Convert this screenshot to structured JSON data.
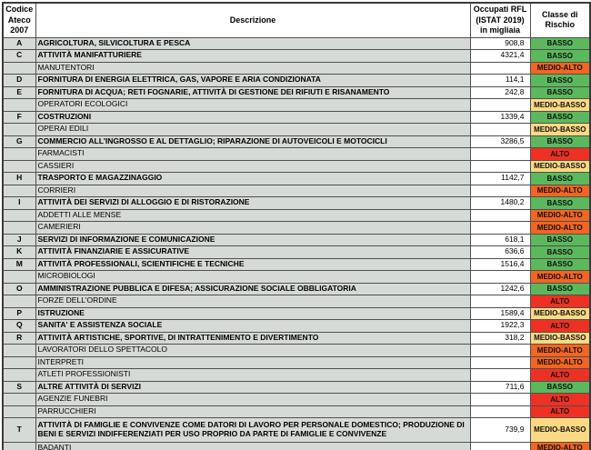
{
  "header": {
    "col_code": "Codice\nAteco\n2007",
    "col_desc": "Descrizione",
    "col_occ": "Occupati RFL\n(ISTAT 2019)\nin migliaia",
    "col_risk": "Classe di\nRischio"
  },
  "risk_colors": {
    "BASSO": "#5cb85c",
    "MEDIO-BASSO": "#fbd983",
    "MEDIO-ALTO": "#f26522",
    "ALTO": "#ee3124"
  },
  "rows": [
    {
      "code": "A",
      "desc": "AGRICOLTURA, SILVICOLTURA E PESCA",
      "occ": "908,8",
      "risk": "BASSO"
    },
    {
      "code": "C",
      "desc": "ATTIVITÀ MANIFATTURIERE",
      "occ": "4321,4",
      "risk": "BASSO"
    },
    {
      "code": "",
      "desc": "MANUTENTORI",
      "occ": "",
      "risk": "MEDIO-ALTO"
    },
    {
      "code": "D",
      "desc": "FORNITURA DI ENERGIA ELETTRICA, GAS, VAPORE E ARIA CONDIZIONATA",
      "occ": "114,1",
      "risk": "BASSO"
    },
    {
      "code": "E",
      "desc": "FORNITURA DI ACQUA; RETI FOGNARIE, ATTIVITÀ DI GESTIONE DEI RIFIUTI E RISANAMENTO",
      "occ": "242,8",
      "risk": "BASSO"
    },
    {
      "code": "",
      "desc": "OPERATORI ECOLOGICI",
      "occ": "",
      "risk": "MEDIO-BASSO"
    },
    {
      "code": "F",
      "desc": "COSTRUZIONI",
      "occ": "1339,4",
      "risk": "BASSO"
    },
    {
      "code": "",
      "desc": "OPERAI EDILI",
      "occ": "",
      "risk": "MEDIO-BASSO"
    },
    {
      "code": "G",
      "desc": "COMMERCIO ALL'INGROSSO E AL DETTAGLIO; RIPARAZIONE DI AUTOVEICOLI E MOTOCICLI",
      "occ": "3286,5",
      "risk": "BASSO"
    },
    {
      "code": "",
      "desc": "FARMACISTI",
      "occ": "",
      "risk": "ALTO"
    },
    {
      "code": "",
      "desc": "CASSIERI",
      "occ": "",
      "risk": "MEDIO-BASSO"
    },
    {
      "code": "H",
      "desc": "TRASPORTO E MAGAZZINAGGIO",
      "occ": "1142,7",
      "risk": "BASSO"
    },
    {
      "code": "",
      "desc": "CORRIERI",
      "occ": "",
      "risk": "MEDIO-ALTO"
    },
    {
      "code": "I",
      "desc": "ATTIVITÀ DEI SERVIZI DI ALLOGGIO E DI RISTORAZIONE",
      "occ": "1480,2",
      "risk": "BASSO"
    },
    {
      "code": "",
      "desc": "ADDETTI ALLE MENSE",
      "occ": "",
      "risk": "MEDIO-ALTO"
    },
    {
      "code": "",
      "desc": "CAMERIERI",
      "occ": "",
      "risk": "MEDIO-ALTO"
    },
    {
      "code": "J",
      "desc": "SERVIZI DI INFORMAZIONE E COMUNICAZIONE",
      "occ": "618,1",
      "risk": "BASSO"
    },
    {
      "code": "K",
      "desc": "ATTIVITÀ FINANZIARIE E ASSICURATIVE",
      "occ": "636,6",
      "risk": "BASSO"
    },
    {
      "code": "M",
      "desc": "ATTIVITÀ PROFESSIONALI, SCIENTIFICHE E TECNICHE",
      "occ": "1516,4",
      "risk": "BASSO"
    },
    {
      "code": "",
      "desc": "MICROBIOLOGI",
      "occ": "",
      "risk": "MEDIO-ALTO"
    },
    {
      "code": "O",
      "desc": "AMMINISTRAZIONE PUBBLICA E DIFESA; ASSICURAZIONE SOCIALE OBBLIGATORIA",
      "occ": "1242,6",
      "risk": "BASSO"
    },
    {
      "code": "",
      "desc": "FORZE DELL'ORDINE",
      "occ": "",
      "risk": "ALTO"
    },
    {
      "code": "P",
      "desc": "ISTRUZIONE",
      "occ": "1589,4",
      "risk": "MEDIO-BASSO"
    },
    {
      "code": "Q",
      "desc": "SANITA' E ASSISTENZA SOCIALE",
      "occ": "1922,3",
      "risk": "ALTO"
    },
    {
      "code": "R",
      "desc": "ATTIVITÀ ARTISTICHE, SPORTIVE, DI INTRATTENIMENTO E DIVERTIMENTO",
      "occ": "318,2",
      "risk": "MEDIO-BASSO"
    },
    {
      "code": "",
      "desc": "LAVORATORI DELLO SPETTACOLO",
      "occ": "",
      "risk": "MEDIO-ALTO"
    },
    {
      "code": "",
      "desc": "INTERPRETI",
      "occ": "",
      "risk": "MEDIO-ALTO"
    },
    {
      "code": "",
      "desc": "ATLETI PROFESSIONISTI",
      "occ": "",
      "risk": "ALTO"
    },
    {
      "code": "S",
      "desc": "ALTRE ATTIVITÀ DI SERVIZI",
      "occ": "711,6",
      "risk": "BASSO"
    },
    {
      "code": "",
      "desc": "AGENZIE FUNEBRI",
      "occ": "",
      "risk": "ALTO"
    },
    {
      "code": "",
      "desc": "PARRUCCHIERI",
      "occ": "",
      "risk": "ALTO"
    },
    {
      "code": "T",
      "desc": "ATTIVITÀ DI FAMIGLIE E CONVIVENZE COME DATORI DI LAVORO PER PERSONALE DOMESTICO; PRODUZIONE DI BENI E SERVIZI INDIFFERENZIATI PER USO PROPRIO DA PARTE DI FAMIGLIE E CONVIVENZE",
      "occ": "739,9",
      "risk": "MEDIO-BASSO",
      "tall": true
    },
    {
      "code": "",
      "desc": "BADANTI",
      "occ": "",
      "risk": "MEDIO-ALTO"
    }
  ]
}
